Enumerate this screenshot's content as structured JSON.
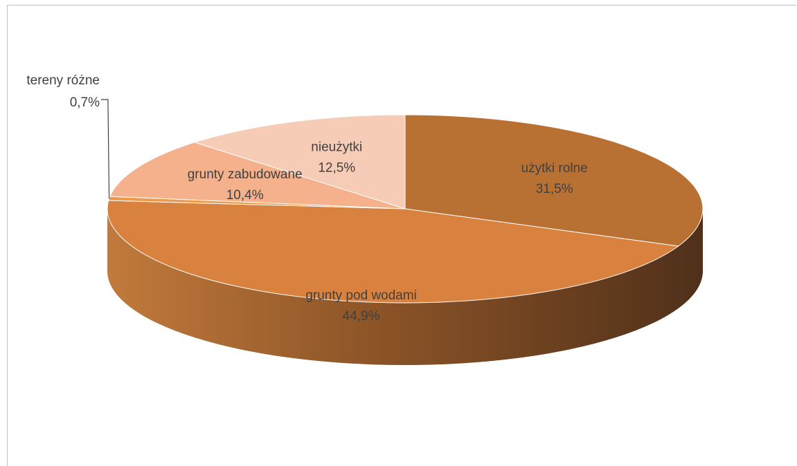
{
  "chart_data": {
    "type": "pie",
    "title": "",
    "style": "3d",
    "slices": [
      {
        "name": "użytki rolne",
        "value": 31.5,
        "label": "31,5%",
        "color": "#b87133"
      },
      {
        "name": "grunty pod wodami",
        "value": 44.9,
        "label": "44,9%",
        "color": "#d9823f"
      },
      {
        "name": "tereny różne",
        "value": 0.7,
        "label": "0,7%",
        "color": "#ef9a4a"
      },
      {
        "name": "grunty zabudowane",
        "value": 10.4,
        "label": "10,4%",
        "color": "#f4b18b"
      },
      {
        "name": "nieużytki",
        "value": 12.5,
        "label": "12,5%",
        "color": "#f7ccb6"
      }
    ],
    "side_colors": {
      "light": "#c27a3c",
      "mid": "#8c5427",
      "dark": "#50301a"
    }
  }
}
